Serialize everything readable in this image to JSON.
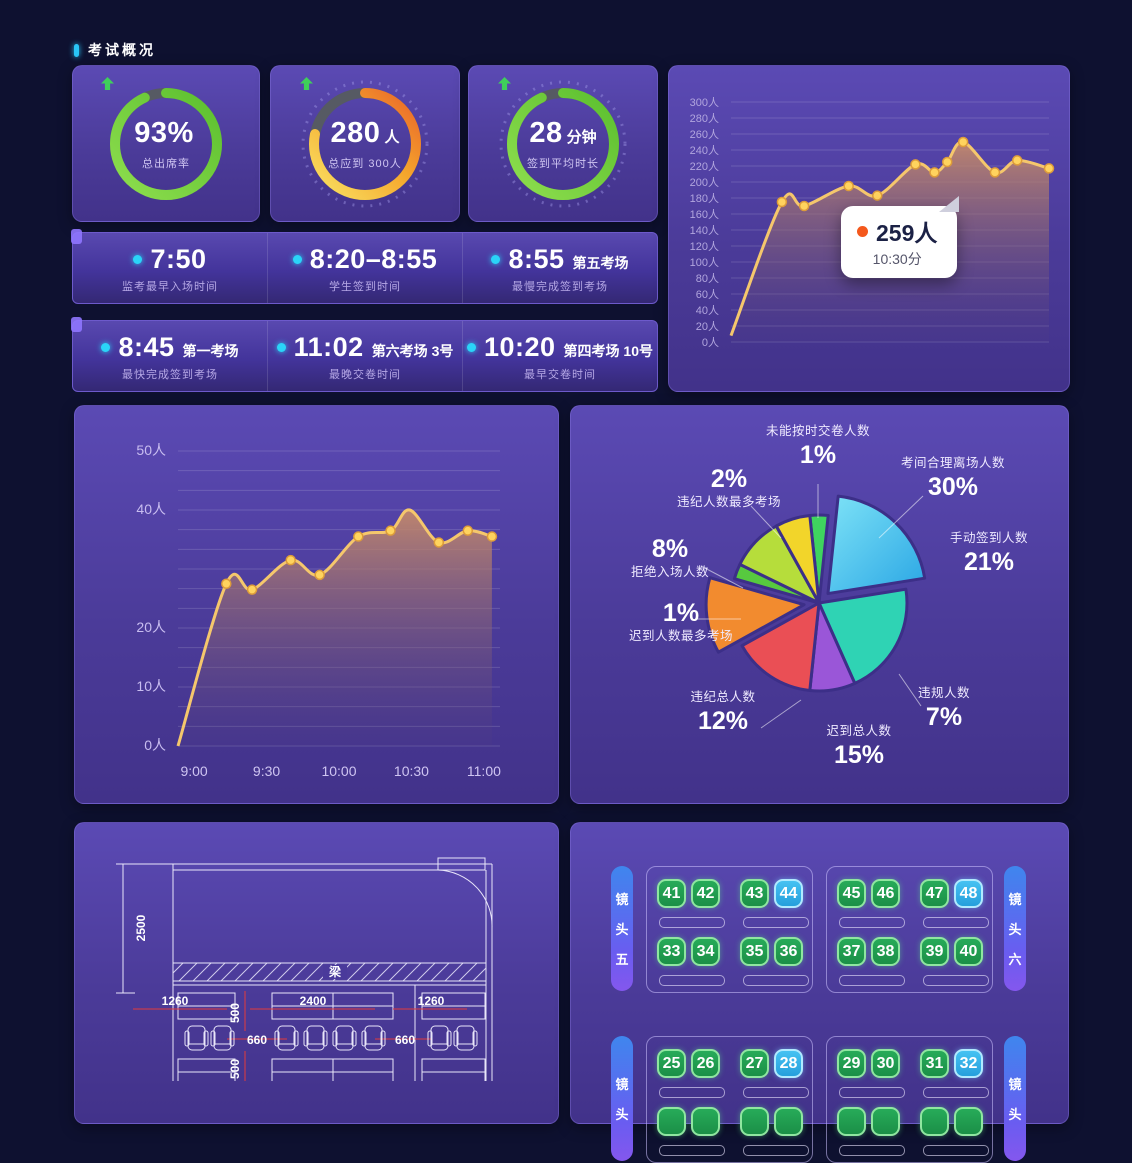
{
  "colors": {
    "background": "#0e1130",
    "accent_cyan": "#29c5f6",
    "gold_line": "#f5c76c",
    "green_ring": "#6ecb3c",
    "ring_track": "#565a63",
    "red_dim": "#e23b3b",
    "seat_green": "#1f9e50",
    "seat_blue": "#2fb3ea",
    "tooltip_dot": "#f4581c"
  },
  "header": {
    "title": "考试概况"
  },
  "gauges": [
    {
      "value": "93%",
      "unit": "",
      "label": "总出席率",
      "ring_percent": 93,
      "ring_style": "green",
      "ticks": false
    },
    {
      "value": "280",
      "unit": "人",
      "label": "总应到 300人",
      "ring_percent": 78,
      "ring_style": "orange",
      "ticks": true
    },
    {
      "value": "28",
      "unit": "分钟",
      "label": "签到平均时长",
      "ring_percent": 93,
      "ring_style": "green",
      "ticks": true
    }
  ],
  "stat_rows": [
    [
      {
        "time": "7:50",
        "suffix": "",
        "label": "监考最早入场时间"
      },
      {
        "time": "8:20–8:55",
        "suffix": "",
        "label": "学生签到时间"
      },
      {
        "time": "8:55",
        "suffix": "第五考场",
        "label": "最慢完成签到考场"
      }
    ],
    [
      {
        "time": "8:45",
        "suffix": "第一考场",
        "label": "最快完成签到考场"
      },
      {
        "time": "11:02",
        "suffix": "第六考场 3号",
        "label": "最晚交卷时间"
      },
      {
        "time": "10:20",
        "suffix": "第四考场 10号",
        "label": "最早交卷时间"
      }
    ]
  ],
  "chart_data": [
    {
      "id": "attendance-trend",
      "type": "area",
      "ylabel": "人数",
      "y_unit": "人",
      "ylim": [
        0,
        300
      ],
      "ytick_step": 20,
      "grid": true,
      "points": [
        [
          0,
          8
        ],
        [
          0.16,
          175
        ],
        [
          0.23,
          170
        ],
        [
          0.37,
          195
        ],
        [
          0.46,
          183
        ],
        [
          0.58,
          222
        ],
        [
          0.64,
          212
        ],
        [
          0.68,
          225
        ],
        [
          0.73,
          250
        ],
        [
          0.83,
          212
        ],
        [
          0.9,
          227
        ],
        [
          1.0,
          217
        ]
      ],
      "marker_indices": [
        1,
        2,
        3,
        4,
        5,
        6,
        7,
        8,
        9,
        10,
        11
      ],
      "tooltip": {
        "value": "259人",
        "time": "10:30分"
      }
    },
    {
      "id": "per-interval-trend",
      "type": "area",
      "ylabel": "人数",
      "y_unit": "人",
      "ylim": [
        0,
        50
      ],
      "ytick_step": 10,
      "minor_divisions": 3,
      "grid": true,
      "x_ticks": [
        {
          "label": "9:00",
          "f": 0.05
        },
        {
          "label": "9:30",
          "f": 0.275
        },
        {
          "label": "10:00",
          "f": 0.5
        },
        {
          "label": "10:30",
          "f": 0.725
        },
        {
          "label": "11:00",
          "f": 0.95
        }
      ],
      "points": [
        [
          0,
          0
        ],
        [
          0.15,
          27.5
        ],
        [
          0.23,
          26.5
        ],
        [
          0.35,
          31.5
        ],
        [
          0.44,
          29
        ],
        [
          0.56,
          35.5
        ],
        [
          0.66,
          36.5
        ],
        [
          0.72,
          40
        ],
        [
          0.81,
          34.5
        ],
        [
          0.9,
          36.5
        ],
        [
          0.975,
          35.5
        ]
      ],
      "marker_indices": [
        1,
        2,
        3,
        4,
        5,
        6,
        8,
        9,
        10
      ]
    },
    {
      "id": "exam-breakdown",
      "type": "pie",
      "start_angle": -6,
      "slices": [
        {
          "label": "未能按时交卷人数",
          "pct": "1%",
          "value": 1,
          "color": "#3fd45f",
          "display_deg": 12,
          "explode": 0
        },
        {
          "label": "考间合理离场人数",
          "pct": "30%",
          "value": 30,
          "color": "#2aa6e4",
          "color2": "#7ee3f7",
          "display_deg": 75,
          "explode": 13
        },
        {
          "label": "手动签到人数",
          "pct": "21%",
          "value": 21,
          "color": "#2fd3b4",
          "display_deg": 75,
          "explode": 0
        },
        {
          "label": "违规人数",
          "pct": "7%",
          "value": 7,
          "color": "#9a56d8",
          "display_deg": 30,
          "explode": 0
        },
        {
          "label": "迟到总人数",
          "pct": "15%",
          "value": 15,
          "color": "#ea4f55",
          "display_deg": 55,
          "explode": 0
        },
        {
          "label": "违纪总人数",
          "pct": "12%",
          "value": 12,
          "color": "#f28b2f",
          "display_deg": 45,
          "explode": 15
        },
        {
          "label": "迟到人数最多考场",
          "pct": "1%",
          "value": 1,
          "color": "#57c93f",
          "display_deg": 10,
          "explode": 0
        },
        {
          "label": "拒绝入场人数",
          "pct": "8%",
          "value": 8,
          "color": "#b6dd3b",
          "display_deg": 35,
          "explode": 0
        },
        {
          "label": "违纪人数最多考场",
          "pct": "2%",
          "value": 2,
          "color": "#f2d52a",
          "display_deg": 23,
          "explode": 0
        }
      ]
    }
  ],
  "floorplan": {
    "height_dim": "2500",
    "beam_label": "梁",
    "width_dims": [
      "1260",
      "2400",
      "1260"
    ],
    "depth_dims": [
      "500",
      "500"
    ],
    "spacing_dims": [
      "660",
      "660"
    ]
  },
  "seatmap": {
    "rows": [
      {
        "left_camera": "镜头五",
        "right_camera": "镜头六",
        "blocks": [
          {
            "seat_rows": [
              [
                "41",
                "42",
                "43",
                "44"
              ],
              [
                "33",
                "34",
                "35",
                "36"
              ]
            ]
          },
          {
            "seat_rows": [
              [
                "45",
                "46",
                "47",
                "48"
              ],
              [
                "37",
                "38",
                "39",
                "40"
              ]
            ]
          }
        ]
      },
      {
        "left_camera": "镜头",
        "right_camera": "镜头",
        "blocks": [
          {
            "seat_rows": [
              [
                "25",
                "26",
                "27",
                "28"
              ],
              [
                "",
                "",
                "",
                ""
              ]
            ]
          },
          {
            "seat_rows": [
              [
                "29",
                "30",
                "31",
                "32"
              ],
              [
                "",
                "",
                "",
                ""
              ]
            ]
          }
        ]
      }
    ],
    "highlight_seats": [
      "44",
      "48",
      "28",
      "32"
    ]
  }
}
